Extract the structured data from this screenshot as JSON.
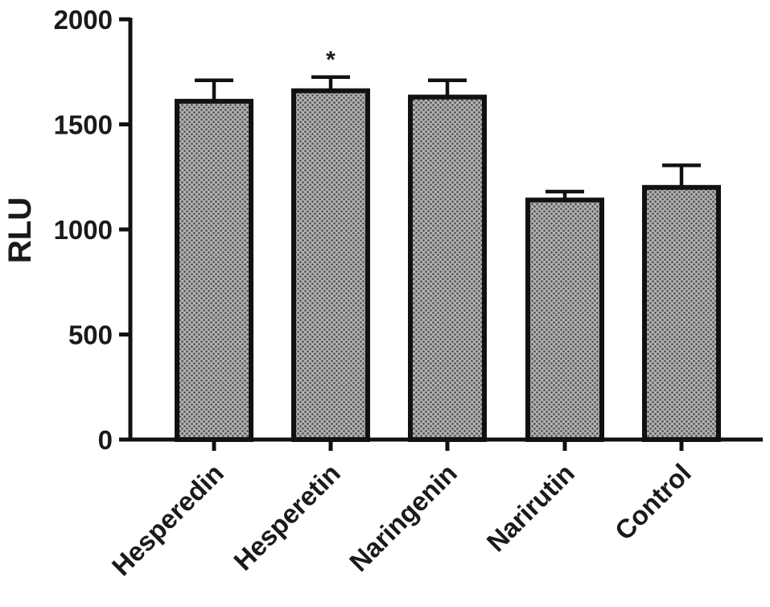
{
  "chart_data": {
    "type": "bar",
    "categories": [
      "Hesperedin",
      "Hesperetin",
      "Naringenin",
      "Narirutin",
      "Control"
    ],
    "values": [
      1610,
      1660,
      1630,
      1140,
      1200
    ],
    "errors": [
      100,
      65,
      80,
      40,
      105
    ],
    "annotations": [
      {
        "category": "Hesperetin",
        "text": "*"
      }
    ],
    "ylabel": "RLU",
    "xlabel": "",
    "title": "",
    "ylim": [
      0,
      2000
    ],
    "yticks": [
      0,
      500,
      1000,
      1500,
      2000
    ],
    "grid": false,
    "bar_fill": "#b0b0b0",
    "bar_pattern_dot": "#4a4a4a",
    "bar_edge": "#111111"
  }
}
